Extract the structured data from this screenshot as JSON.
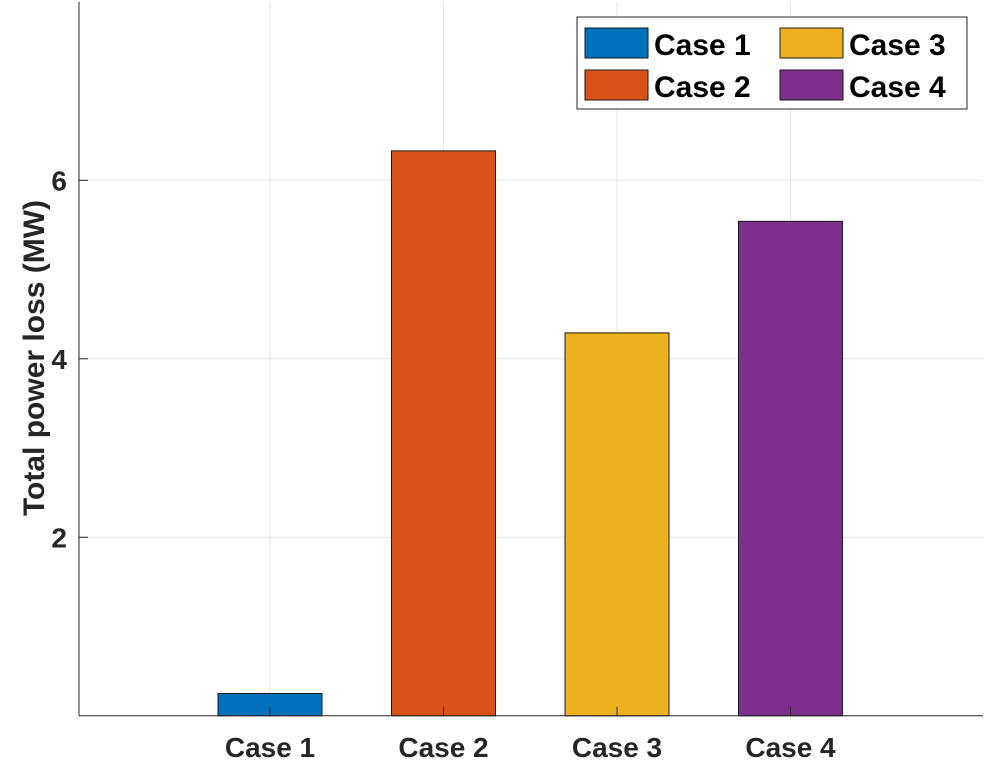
{
  "chart_data": {
    "type": "bar",
    "categories": [
      "Case 1",
      "Case 2",
      "Case 3",
      "Case 4"
    ],
    "values": [
      0.25,
      6.33,
      4.29,
      5.54
    ],
    "colors": [
      "#0072BD",
      "#D95319",
      "#EDB120",
      "#7E2F8E"
    ],
    "title": "",
    "xlabel": "",
    "ylabel": "Total power loss (MW)",
    "ylim": [
      0,
      8
    ],
    "yticks": [
      2,
      4,
      6
    ],
    "ytick_labels": [
      "2",
      "4",
      "6"
    ],
    "grid": true,
    "legend": {
      "placement": "top-right",
      "columns": 2,
      "entries": [
        "Case 1",
        "Case 2",
        "Case 3",
        "Case 4"
      ]
    }
  }
}
